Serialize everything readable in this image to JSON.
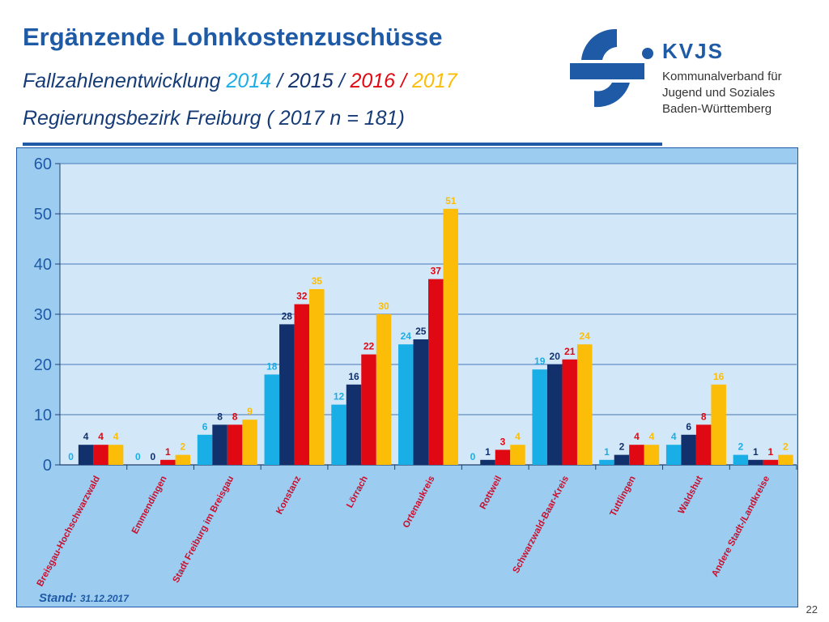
{
  "slide": {
    "title": "Ergänzende Lohnkostenzuschüsse",
    "subtitle_prefix": "Fallzahlenentwicklung ",
    "year_labels": [
      "2014",
      "2015",
      "2016",
      "2017"
    ],
    "year_separator": " / ",
    "region": "Regierungsbezirk Freiburg ( 2017 n = 181)",
    "stand_label": "Stand:",
    "stand_date": "31.12.2017",
    "page_number": "22"
  },
  "logo": {
    "name": "KVJS",
    "lines": [
      "Kommunalverband für",
      "Jugend und Soziales",
      "Baden-Württemberg"
    ]
  },
  "colors": {
    "2014": "#1aaee6",
    "2015": "#12306b",
    "2016": "#e00812",
    "2017": "#fbbd08",
    "plot_bg": "#d2e8f9",
    "panel_bg": "#9ccdf1",
    "brand": "#1f5aa6",
    "category_label": "#c8102e"
  },
  "chart_data": {
    "type": "bar",
    "title": "",
    "xlabel": "",
    "ylabel": "",
    "ylim": [
      0,
      60
    ],
    "yticks": [
      0,
      10,
      20,
      30,
      40,
      50,
      60
    ],
    "grid": true,
    "categories": [
      "Breisgau-Hochschwarzwald",
      "Emmendingen",
      "Stadt Freiburg im Breisgau",
      "Konstanz",
      "Lörrach",
      "Ortenaukreis",
      "Rottweil",
      "Schwarzwald-Baar-Kreis",
      "Tuttlingen",
      "Waldshut",
      "Andere Stadt-/Landkreise"
    ],
    "series": [
      {
        "name": "2014",
        "values": [
          0,
          0,
          6,
          18,
          12,
          24,
          0,
          19,
          1,
          4,
          2
        ]
      },
      {
        "name": "2015",
        "values": [
          4,
          0,
          8,
          28,
          16,
          25,
          1,
          20,
          2,
          6,
          1
        ]
      },
      {
        "name": "2016",
        "values": [
          4,
          1,
          8,
          32,
          22,
          37,
          3,
          21,
          4,
          8,
          1
        ]
      },
      {
        "name": "2017",
        "values": [
          4,
          2,
          9,
          35,
          30,
          51,
          4,
          24,
          4,
          16,
          2
        ]
      }
    ]
  }
}
